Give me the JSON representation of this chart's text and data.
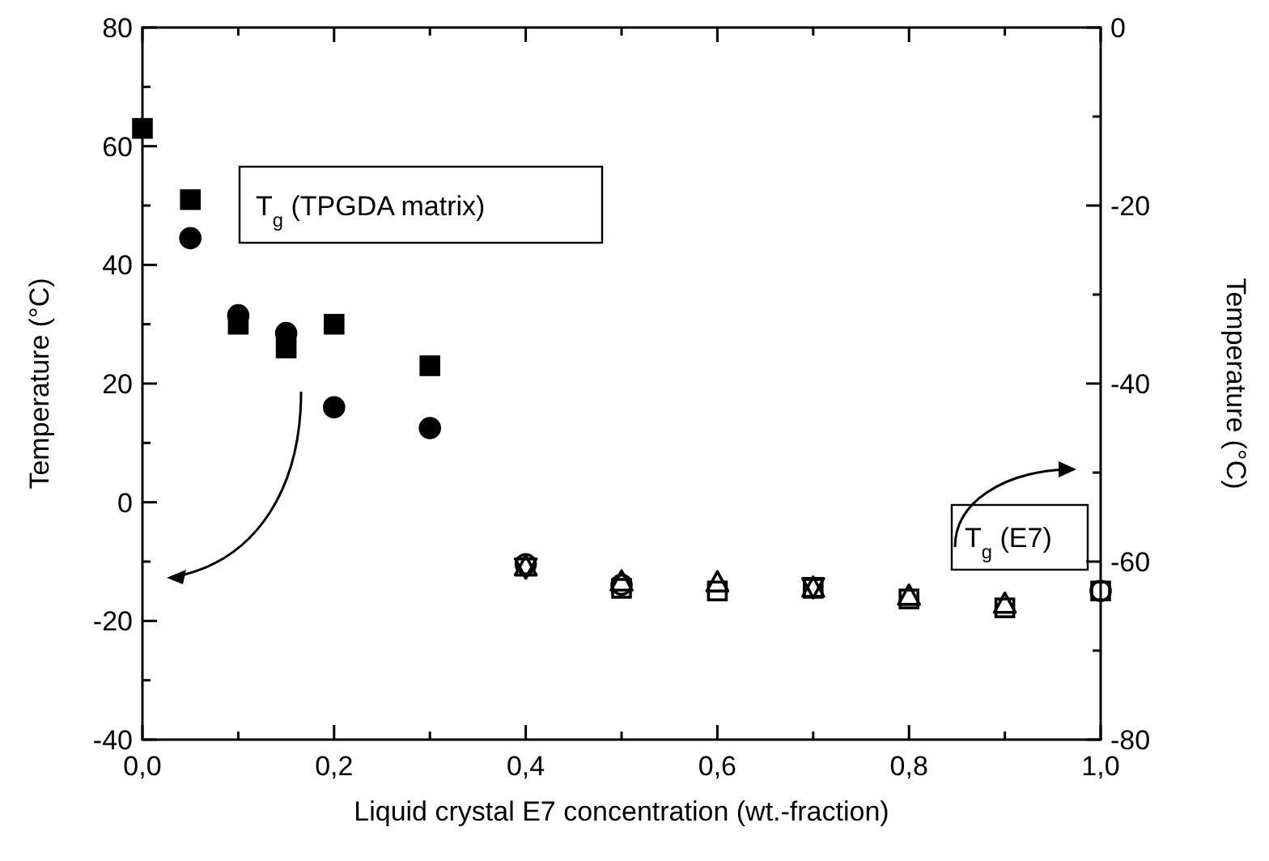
{
  "chart_data": {
    "type": "scatter",
    "xlabel": "Liquid crystal E7 concentration (wt.-fraction)",
    "ylabel": "Temperature (°C)",
    "y2label": "Temperature (°C)",
    "xlim": [
      0,
      1
    ],
    "xticks": [
      {
        "value": 0,
        "label": "0,0"
      },
      {
        "value": 0.1,
        "label": null
      },
      {
        "value": 0.2,
        "label": "0,2"
      },
      {
        "value": 0.3,
        "label": null
      },
      {
        "value": 0.4,
        "label": "0,4"
      },
      {
        "value": 0.5,
        "label": null
      },
      {
        "value": 0.6,
        "label": "0,6"
      },
      {
        "value": 0.7,
        "label": null
      },
      {
        "value": 0.8,
        "label": "0,8"
      },
      {
        "value": 0.9,
        "label": null
      },
      {
        "value": 1,
        "label": "1,0"
      }
    ],
    "ylim": [
      -40,
      80
    ],
    "yticks": [
      -40,
      {
        "value": -30,
        "label": null
      },
      -20,
      {
        "value": -10,
        "label": null
      },
      0,
      {
        "value": 10,
        "label": null
      },
      20,
      {
        "value": 30,
        "label": null
      },
      40,
      {
        "value": 50,
        "label": null
      },
      60,
      {
        "value": 70,
        "label": null
      },
      80
    ],
    "y2lim": [
      -80,
      0
    ],
    "y2ticks": [
      -80,
      {
        "value": -70,
        "label": null
      },
      -60,
      {
        "value": -50,
        "label": null
      },
      -40,
      {
        "value": -30,
        "label": null
      },
      -20,
      {
        "value": -10,
        "label": null
      },
      0
    ],
    "annotations": [
      "T$_{g}$ (TPGDA matrix)",
      "T$_{g}$ (E7)"
    ],
    "grid": false,
    "series": [
      {
        "color": "#000000",
        "marker": "square",
        "x": [
          0,
          0.05,
          0.1,
          0.15,
          0.2,
          0.3
        ],
        "values": [
          63,
          51,
          30,
          26,
          30,
          23
        ]
      },
      {
        "color": "#000000",
        "marker": "circle",
        "x": [
          0.05,
          0.1,
          0.15,
          0.2,
          0.3
        ],
        "values": [
          44.5,
          31.5,
          28.5,
          16,
          12.5
        ]
      },
      {
        "color": "#000000",
        "marker": "triangle",
        "axis": "y2",
        "x": [
          0.4,
          0.5,
          0.6,
          0.7,
          0.8,
          0.9
        ],
        "values": [
          -60.6,
          -62.3,
          -62.4,
          -63,
          -63.9,
          -64.8
        ]
      },
      {
        "color": "#000000",
        "marker": "square",
        "axis": "y2",
        "x": [
          0.5,
          0.6,
          0.7,
          0.8,
          0.9,
          1
        ],
        "values": [
          -63,
          -63.3,
          -63,
          -64.2,
          -65.2,
          -63.3
        ]
      },
      {
        "color": "#000000",
        "marker": "triangle-down",
        "axis": "y2",
        "x": [
          0.4,
          0.7
        ],
        "values": [
          -60.6,
          -62.8
        ]
      },
      {
        "color": "#000000",
        "marker": "circle",
        "axis": "y2",
        "x": [
          0.4,
          0.5,
          1
        ],
        "values": [
          -60.3,
          -62.6,
          -63.3
        ]
      }
    ]
  }
}
